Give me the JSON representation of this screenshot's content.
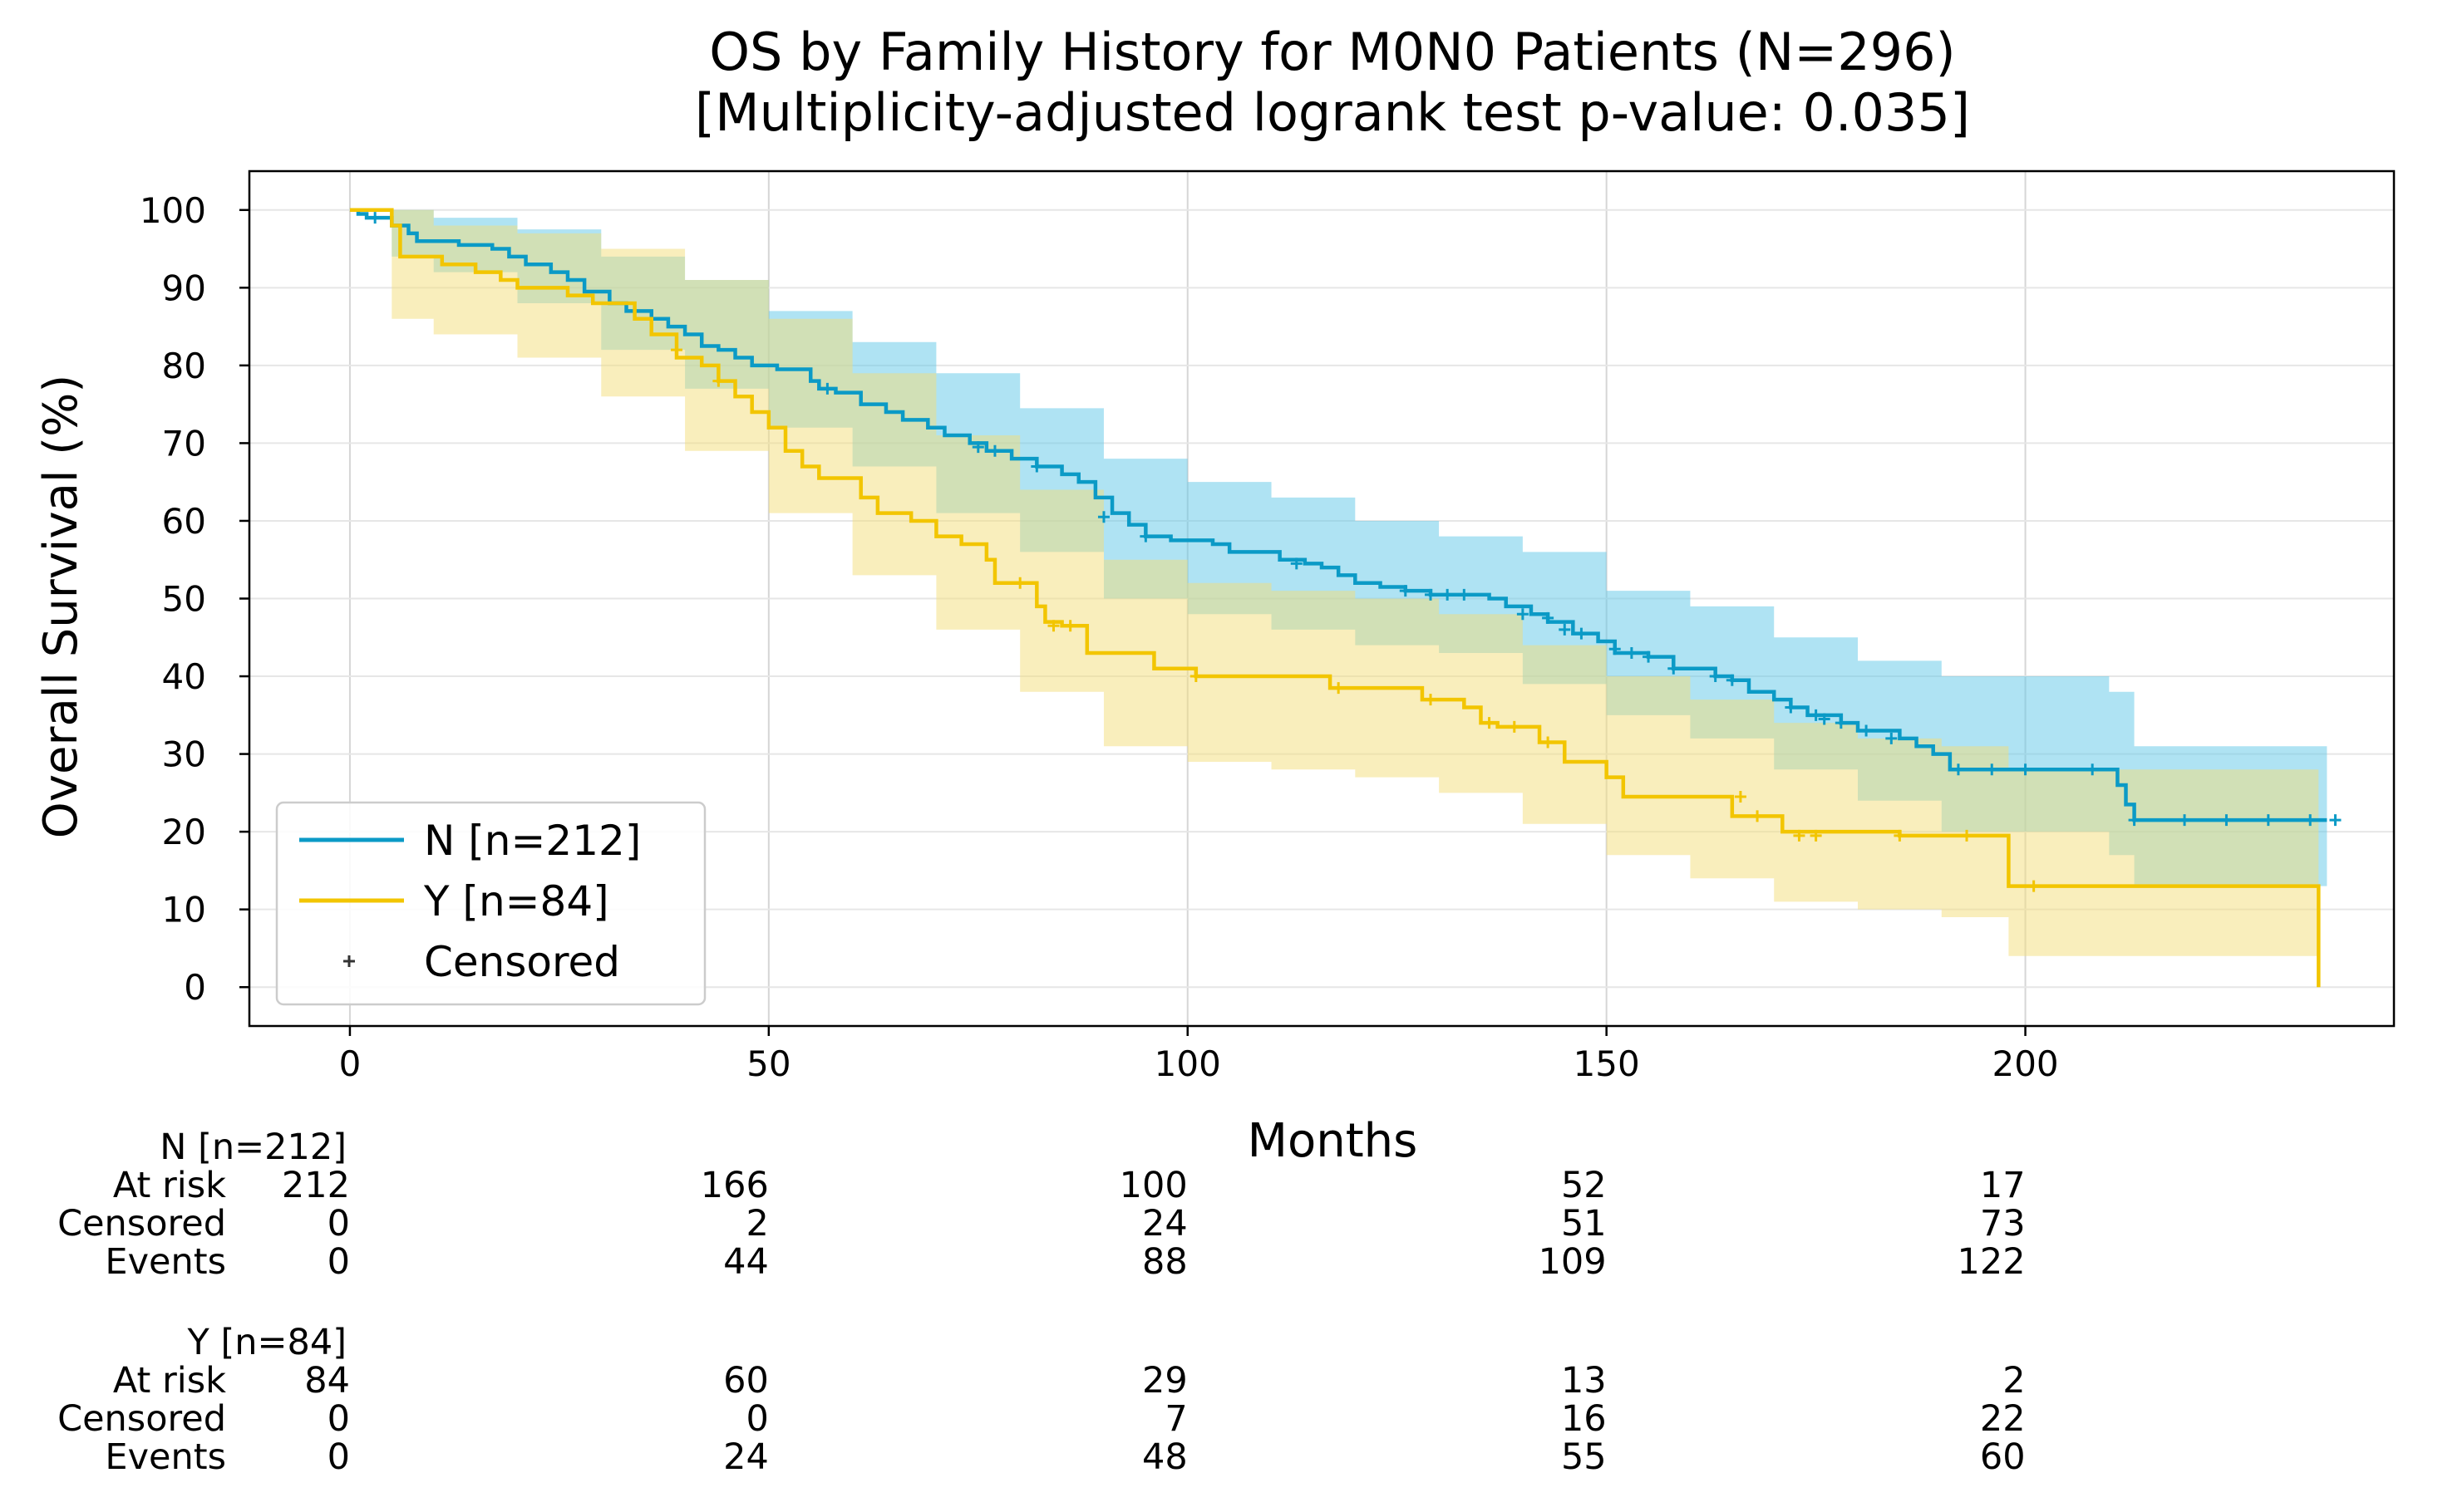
{
  "chart_data": {
    "type": "line",
    "subtype": "kaplan-meier",
    "title": "OS by Family History for M0N0 Patients (N=296)",
    "subtitle": "[Multiplicity-adjusted logrank test p-value: 0.035]",
    "xlabel": "Months",
    "ylabel": "Overall Survival (%)",
    "xlim": [
      -12,
      244
    ],
    "ylim": [
      -5,
      105
    ],
    "xticks": [
      0,
      50,
      100,
      150,
      200
    ],
    "yticks": [
      0,
      10,
      20,
      30,
      40,
      50,
      60,
      70,
      80,
      90,
      100
    ],
    "grid": true,
    "legend_position": "lower-left",
    "legend": [
      {
        "label": "N [n=212]",
        "kind": "line",
        "color": "#0b9ac6"
      },
      {
        "label": "Y [n=84]",
        "kind": "line",
        "color": "#f2c500"
      },
      {
        "label": "Censored",
        "kind": "marker",
        "symbol": "+"
      }
    ],
    "series": [
      {
        "name": "N [n=212]",
        "color": "#0b9ac6",
        "band_color": "#5fc8e8",
        "steps": [
          [
            0,
            100
          ],
          [
            1,
            99.5
          ],
          [
            2,
            99
          ],
          [
            5,
            98
          ],
          [
            7,
            97
          ],
          [
            8,
            96
          ],
          [
            13,
            95.5
          ],
          [
            17,
            95
          ],
          [
            19,
            94
          ],
          [
            21,
            93
          ],
          [
            24,
            92
          ],
          [
            26,
            91
          ],
          [
            28,
            89.5
          ],
          [
            31,
            88
          ],
          [
            33,
            87
          ],
          [
            36,
            86
          ],
          [
            38,
            85
          ],
          [
            40,
            84
          ],
          [
            42,
            82.5
          ],
          [
            44,
            82
          ],
          [
            46,
            81
          ],
          [
            48,
            80
          ],
          [
            51,
            79.5
          ],
          [
            55,
            78
          ],
          [
            56,
            77
          ],
          [
            58,
            76.5
          ],
          [
            61,
            75
          ],
          [
            64,
            74
          ],
          [
            66,
            73
          ],
          [
            69,
            72
          ],
          [
            71,
            71
          ],
          [
            74,
            70
          ],
          [
            76,
            69
          ],
          [
            79,
            68
          ],
          [
            82,
            67
          ],
          [
            85,
            66
          ],
          [
            87,
            65
          ],
          [
            89,
            63
          ],
          [
            91,
            61
          ],
          [
            93,
            59.5
          ],
          [
            95,
            58
          ],
          [
            98,
            57.5
          ],
          [
            103,
            57
          ],
          [
            105,
            56
          ],
          [
            111,
            55
          ],
          [
            114,
            54.5
          ],
          [
            116,
            54
          ],
          [
            118,
            53
          ],
          [
            120,
            52
          ],
          [
            123,
            51.5
          ],
          [
            126,
            51
          ],
          [
            129,
            50.5
          ],
          [
            132,
            50.5
          ],
          [
            136,
            50
          ],
          [
            138,
            49
          ],
          [
            141,
            48
          ],
          [
            143,
            47
          ],
          [
            146,
            45.5
          ],
          [
            149,
            44.5
          ],
          [
            151,
            43
          ],
          [
            155,
            42.5
          ],
          [
            158,
            41
          ],
          [
            163,
            40
          ],
          [
            165,
            39.5
          ],
          [
            167,
            38
          ],
          [
            170,
            37
          ],
          [
            172,
            36
          ],
          [
            174,
            35
          ],
          [
            178,
            34
          ],
          [
            180,
            33
          ],
          [
            185,
            32
          ],
          [
            187,
            31
          ],
          [
            189,
            30
          ],
          [
            191,
            28
          ],
          [
            199,
            28
          ],
          [
            210,
            28
          ],
          [
            211,
            26
          ],
          [
            212,
            23.5
          ],
          [
            213,
            21.5
          ],
          [
            236,
            21.5
          ]
        ],
        "band": [
          [
            0,
            100,
            100
          ],
          [
            5,
            94,
            100
          ],
          [
            10,
            92,
            99
          ],
          [
            20,
            88,
            97.5
          ],
          [
            30,
            82,
            94
          ],
          [
            40,
            77,
            91
          ],
          [
            50,
            72,
            87
          ],
          [
            60,
            67,
            83
          ],
          [
            70,
            61,
            79
          ],
          [
            80,
            56,
            74.5
          ],
          [
            90,
            50,
            68
          ],
          [
            100,
            48,
            65
          ],
          [
            110,
            46,
            63
          ],
          [
            120,
            44,
            60
          ],
          [
            130,
            43,
            58
          ],
          [
            140,
            39,
            56
          ],
          [
            150,
            35,
            51
          ],
          [
            160,
            32,
            49
          ],
          [
            170,
            28,
            45
          ],
          [
            180,
            24,
            42
          ],
          [
            190,
            20,
            40
          ],
          [
            200,
            20,
            40
          ],
          [
            210,
            17,
            38
          ],
          [
            213,
            13,
            31
          ],
          [
            236,
            13,
            31
          ]
        ],
        "censored": [
          [
            3,
            99
          ],
          [
            57,
            77
          ],
          [
            75,
            69.5
          ],
          [
            77,
            69
          ],
          [
            82,
            67
          ],
          [
            90,
            60.5
          ],
          [
            95,
            58
          ],
          [
            113,
            54.5
          ],
          [
            126,
            51
          ],
          [
            129,
            50.5
          ],
          [
            131,
            50.5
          ],
          [
            133,
            50.5
          ],
          [
            140,
            48
          ],
          [
            143,
            47.5
          ],
          [
            145,
            46
          ],
          [
            147,
            45.5
          ],
          [
            151,
            43.5
          ],
          [
            153,
            43
          ],
          [
            155,
            42.5
          ],
          [
            158,
            41
          ],
          [
            163,
            40
          ],
          [
            165,
            39.5
          ],
          [
            172,
            36
          ],
          [
            175,
            35
          ],
          [
            176,
            34.5
          ],
          [
            178,
            34
          ],
          [
            181,
            33
          ],
          [
            184,
            32
          ],
          [
            192,
            28
          ],
          [
            196,
            28
          ],
          [
            200,
            28
          ],
          [
            208,
            28
          ],
          [
            213,
            21.5
          ],
          [
            219,
            21.5
          ],
          [
            224,
            21.5
          ],
          [
            229,
            21.5
          ],
          [
            234,
            21.5
          ],
          [
            237,
            21.5
          ]
        ]
      },
      {
        "name": "Y [n=84]",
        "color": "#f2c500",
        "band_color": "#f3de7a",
        "steps": [
          [
            0,
            100
          ],
          [
            5,
            98
          ],
          [
            6,
            94
          ],
          [
            11,
            93
          ],
          [
            15,
            92
          ],
          [
            18,
            91
          ],
          [
            20,
            90
          ],
          [
            26,
            89
          ],
          [
            29,
            88
          ],
          [
            34,
            86
          ],
          [
            36,
            84
          ],
          [
            39,
            81
          ],
          [
            42,
            80
          ],
          [
            44,
            78
          ],
          [
            46,
            76
          ],
          [
            48,
            74
          ],
          [
            50,
            72
          ],
          [
            52,
            69
          ],
          [
            54,
            67
          ],
          [
            56,
            65.5
          ],
          [
            61,
            63
          ],
          [
            63,
            61
          ],
          [
            67,
            60
          ],
          [
            70,
            58
          ],
          [
            73,
            57
          ],
          [
            76,
            55
          ],
          [
            77,
            52
          ],
          [
            82,
            49
          ],
          [
            83,
            47
          ],
          [
            85,
            46.5
          ],
          [
            88,
            43
          ],
          [
            96,
            41
          ],
          [
            101,
            40
          ],
          [
            117,
            38.5
          ],
          [
            128,
            37
          ],
          [
            133,
            36
          ],
          [
            135,
            34
          ],
          [
            137,
            33.5
          ],
          [
            142,
            31.5
          ],
          [
            145,
            29
          ],
          [
            150,
            27
          ],
          [
            152,
            24.5
          ],
          [
            165,
            22
          ],
          [
            171,
            20
          ],
          [
            185,
            19.5
          ],
          [
            198,
            13
          ],
          [
            208,
            13
          ],
          [
            235,
            13
          ],
          [
            235,
            0
          ]
        ],
        "band": [
          [
            0,
            100,
            100
          ],
          [
            5,
            86,
            100
          ],
          [
            10,
            84,
            98
          ],
          [
            20,
            81,
            97
          ],
          [
            30,
            76,
            95
          ],
          [
            40,
            69,
            91
          ],
          [
            50,
            61,
            86
          ],
          [
            60,
            53,
            79
          ],
          [
            70,
            46,
            71
          ],
          [
            80,
            38,
            64
          ],
          [
            90,
            31,
            55
          ],
          [
            100,
            29,
            52
          ],
          [
            110,
            28,
            51
          ],
          [
            120,
            27,
            50
          ],
          [
            130,
            25,
            48
          ],
          [
            140,
            21,
            44
          ],
          [
            150,
            17,
            40
          ],
          [
            160,
            14,
            37
          ],
          [
            170,
            11,
            34
          ],
          [
            180,
            10,
            32
          ],
          [
            190,
            9,
            31
          ],
          [
            198,
            4,
            28
          ],
          [
            210,
            4,
            28
          ],
          [
            235,
            4,
            28
          ]
        ],
        "censored": [
          [
            39,
            82
          ],
          [
            44,
            78
          ],
          [
            80,
            52
          ],
          [
            84,
            46.5
          ],
          [
            86,
            46.5
          ],
          [
            101,
            40
          ],
          [
            118,
            38.5
          ],
          [
            129,
            37
          ],
          [
            136,
            34
          ],
          [
            139,
            33.5
          ],
          [
            143,
            31.5
          ],
          [
            166,
            24.5
          ],
          [
            168,
            22
          ],
          [
            173,
            19.5
          ],
          [
            175,
            19.5
          ],
          [
            185,
            19.5
          ],
          [
            193,
            19.5
          ],
          [
            201,
            13
          ]
        ]
      }
    ],
    "risk_table": {
      "times": [
        0,
        50,
        100,
        150,
        200
      ],
      "groups": [
        {
          "name": "N [n=212]",
          "rows": [
            {
              "label": "At risk",
              "values": [
                212,
                166,
                100,
                52,
                17
              ]
            },
            {
              "label": "Censored",
              "values": [
                0,
                2,
                24,
                51,
                73
              ]
            },
            {
              "label": "Events",
              "values": [
                0,
                44,
                88,
                109,
                122
              ]
            }
          ]
        },
        {
          "name": "Y [n=84]",
          "rows": [
            {
              "label": "At risk",
              "values": [
                84,
                60,
                29,
                13,
                2
              ]
            },
            {
              "label": "Censored",
              "values": [
                0,
                0,
                7,
                16,
                22
              ]
            },
            {
              "label": "Events",
              "values": [
                0,
                24,
                48,
                55,
                60
              ]
            }
          ]
        }
      ]
    }
  }
}
